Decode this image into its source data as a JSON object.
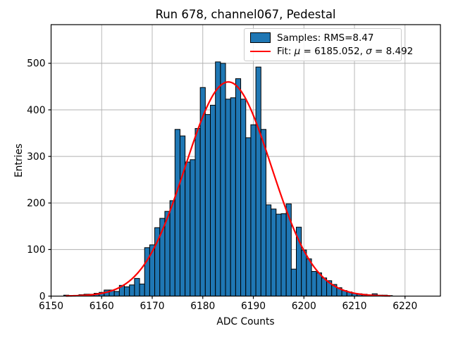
{
  "figure": {
    "title": "Run 678, channel067, Pedestal",
    "xlabel": "ADC Counts",
    "ylabel": "Entries"
  },
  "legend": {
    "samples_label": "Samples: RMS=8.47",
    "fit_prefix": "Fit: ",
    "fit_mu_symbol": "μ",
    "fit_mu_value": " = 6185.052, ",
    "fit_sigma_symbol": "σ",
    "fit_sigma_value": " = 8.492"
  },
  "colors": {
    "bar_fill": "#1f77b4",
    "bar_edge": "#000000",
    "fit_line": "#ff0000",
    "grid": "#b0b0b0",
    "spine": "#000000",
    "text": "#000000"
  },
  "chart_data": {
    "type": "bar",
    "subtype": "histogram_with_gaussian_fit",
    "title": "Run 678, channel067, Pedestal",
    "xlabel": "ADC Counts",
    "ylabel": "Entries",
    "bin_width": 1,
    "bin_centers_start": 6153,
    "values": [
      2,
      1,
      1,
      3,
      4,
      4,
      6,
      8,
      13,
      13,
      10,
      23,
      20,
      24,
      38,
      26,
      104,
      110,
      147,
      167,
      182,
      205,
      358,
      344,
      288,
      293,
      360,
      448,
      390,
      410,
      503,
      500,
      423,
      426,
      467,
      423,
      340,
      368,
      492,
      358,
      196,
      187,
      176,
      177,
      198,
      58,
      148,
      99,
      80,
      53,
      50,
      39,
      33,
      25,
      18,
      12,
      9,
      6,
      5,
      4,
      2,
      5,
      2,
      2,
      1
    ],
    "fit": {
      "type": "gaussian",
      "mu": 6185.052,
      "sigma": 8.492,
      "amplitude": 460,
      "x_start": 6153,
      "x_end": 6217
    },
    "xlim": [
      6150,
      6227
    ],
    "ylim": [
      0,
      583
    ],
    "xticks": [
      6150,
      6160,
      6170,
      6180,
      6190,
      6200,
      6210,
      6220
    ],
    "yticks": [
      0,
      100,
      200,
      300,
      400,
      500
    ],
    "grid": true,
    "legend_position": "upper right",
    "legend_entries": [
      "Samples: RMS=8.47",
      "Fit: μ = 6185.052, σ = 8.492"
    ]
  }
}
